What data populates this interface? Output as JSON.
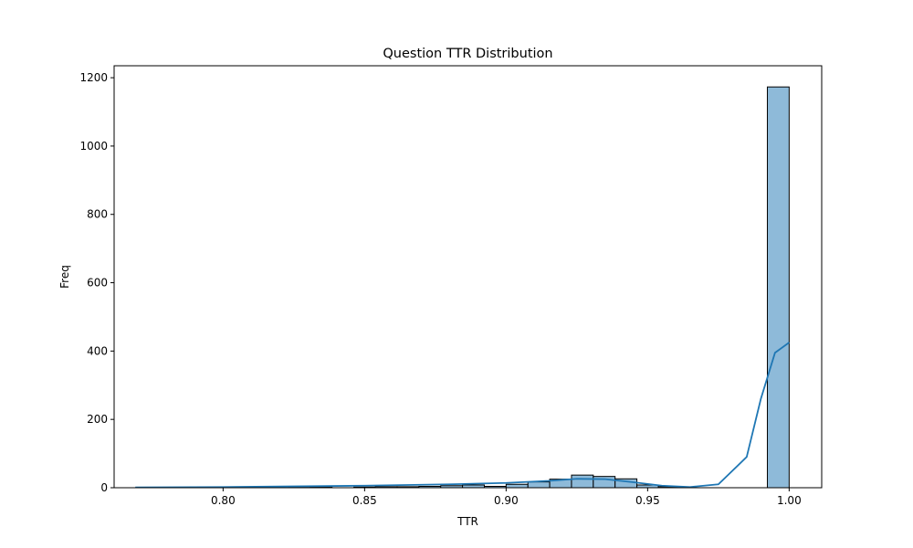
{
  "chart_data": {
    "type": "bar",
    "title": "Question TTR Distribution",
    "xlabel": "TTR",
    "ylabel": "Freq",
    "xlim": [
      0.7615,
      1.0115
    ],
    "ylim": [
      0,
      1235
    ],
    "x_ticks": [
      0.8,
      0.85,
      0.9,
      0.95,
      1.0
    ],
    "x_tick_labels": [
      "0.80",
      "0.85",
      "0.90",
      "0.95",
      "1.00"
    ],
    "y_ticks": [
      0,
      200,
      400,
      600,
      800,
      1000,
      1200
    ],
    "y_tick_labels": [
      "0",
      "200",
      "400",
      "600",
      "800",
      "1000",
      "1200"
    ],
    "grid": false,
    "legend": "none",
    "bar_color": "#8ebad9",
    "bar_edge_color": "#000000",
    "kde_color": "#1f77b4",
    "bins": [
      {
        "x0": 0.7692,
        "x1": 0.7769,
        "count": 1
      },
      {
        "x0": 0.8077,
        "x1": 0.8154,
        "count": 1
      },
      {
        "x0": 0.8231,
        "x1": 0.8308,
        "count": 1
      },
      {
        "x0": 0.8308,
        "x1": 0.8385,
        "count": 2
      },
      {
        "x0": 0.8462,
        "x1": 0.8538,
        "count": 2
      },
      {
        "x0": 0.8538,
        "x1": 0.8615,
        "count": 3
      },
      {
        "x0": 0.8615,
        "x1": 0.8692,
        "count": 3
      },
      {
        "x0": 0.8692,
        "x1": 0.8769,
        "count": 4
      },
      {
        "x0": 0.8769,
        "x1": 0.8846,
        "count": 6
      },
      {
        "x0": 0.8846,
        "x1": 0.8923,
        "count": 8
      },
      {
        "x0": 0.8923,
        "x1": 0.9,
        "count": 4
      },
      {
        "x0": 0.9,
        "x1": 0.9077,
        "count": 10
      },
      {
        "x0": 0.9077,
        "x1": 0.9154,
        "count": 17
      },
      {
        "x0": 0.9154,
        "x1": 0.9231,
        "count": 25
      },
      {
        "x0": 0.9231,
        "x1": 0.9308,
        "count": 37
      },
      {
        "x0": 0.9308,
        "x1": 0.9385,
        "count": 33
      },
      {
        "x0": 0.9385,
        "x1": 0.9462,
        "count": 26
      },
      {
        "x0": 0.9462,
        "x1": 0.9538,
        "count": 8
      },
      {
        "x0": 0.9538,
        "x1": 0.9615,
        "count": 3
      },
      {
        "x0": 0.9923,
        "x1": 1.0,
        "count": 1173
      }
    ],
    "kde": {
      "x": [
        0.769,
        0.8,
        0.85,
        0.88,
        0.9,
        0.915,
        0.925,
        0.935,
        0.945,
        0.955,
        0.965,
        0.975,
        0.985,
        0.99,
        0.995,
        1.0
      ],
      "y": [
        1,
        2,
        6,
        10,
        14,
        20,
        26,
        25,
        16,
        6,
        2,
        10,
        90,
        260,
        395,
        425
      ]
    }
  }
}
